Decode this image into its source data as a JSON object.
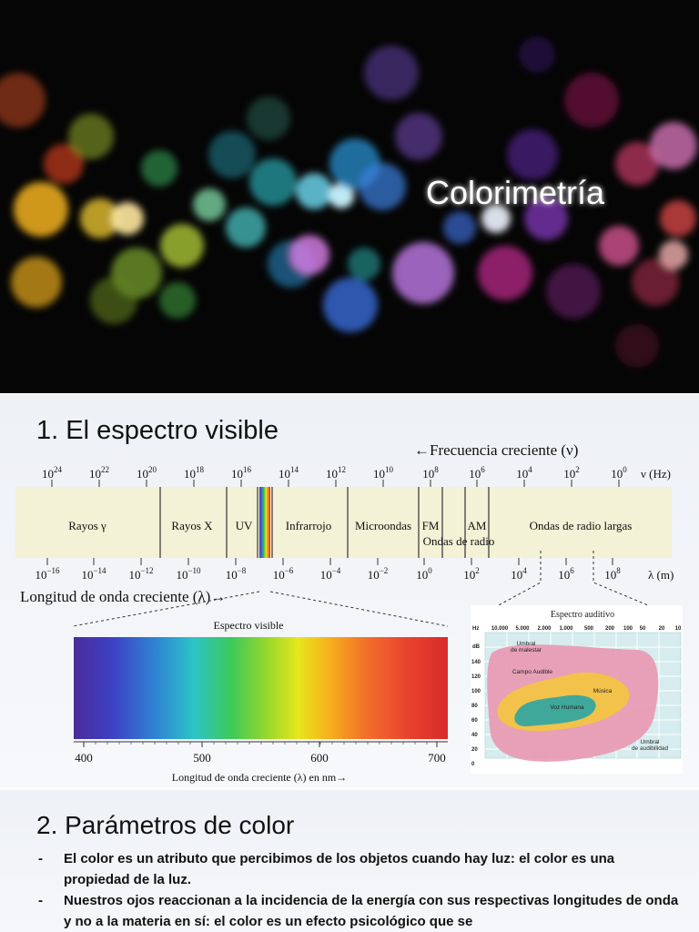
{
  "header": {
    "title": "Colorimetría"
  },
  "section1": {
    "title": "1. El espectro visible",
    "frequency_caption": "←Frecuencia creciente (ν)",
    "frequency_unit": "ν (Hz)",
    "frequency_ticks": [
      {
        "base": "10",
        "exp": "24"
      },
      {
        "base": "10",
        "exp": "22"
      },
      {
        "base": "10",
        "exp": "20"
      },
      {
        "base": "10",
        "exp": "18"
      },
      {
        "base": "10",
        "exp": "16"
      },
      {
        "base": "10",
        "exp": "14"
      },
      {
        "base": "10",
        "exp": "12"
      },
      {
        "base": "10",
        "exp": "10"
      },
      {
        "base": "10",
        "exp": "8"
      },
      {
        "base": "10",
        "exp": "6"
      },
      {
        "base": "10",
        "exp": "4"
      },
      {
        "base": "10",
        "exp": "2"
      },
      {
        "base": "10",
        "exp": "0"
      }
    ],
    "bands": [
      "Rayos γ",
      "Rayos X",
      "UV",
      "Infrarrojo",
      "Microondas",
      "FM",
      "AM",
      "Ondas de radio largas"
    ],
    "radio_label": "Ondas de radio",
    "wavelength_unit": "λ (m)",
    "wavelength_ticks": [
      {
        "base": "10",
        "exp": "−16"
      },
      {
        "base": "10",
        "exp": "−14"
      },
      {
        "base": "10",
        "exp": "−12"
      },
      {
        "base": "10",
        "exp": "−10"
      },
      {
        "base": "10",
        "exp": "−8"
      },
      {
        "base": "10",
        "exp": "−6"
      },
      {
        "base": "10",
        "exp": "−4"
      },
      {
        "base": "10",
        "exp": "−2"
      },
      {
        "base": "10",
        "exp": "0"
      },
      {
        "base": "10",
        "exp": "2"
      },
      {
        "base": "10",
        "exp": "4"
      },
      {
        "base": "10",
        "exp": "6"
      },
      {
        "base": "10",
        "exp": "8"
      }
    ],
    "wavelength_caption": "Longitud de onda creciente (λ)→",
    "visible": {
      "title": "Espectro visible",
      "ticks": [
        "400",
        "500",
        "600",
        "700"
      ],
      "caption": "Longitud de onda creciente (λ) en nm→"
    },
    "auditory": {
      "title": "Espectro auditivo",
      "hz_unit": "Hz",
      "hz_ticks": [
        "10.000",
        "5.000",
        "2.000",
        "1.000",
        "500",
        "200",
        "100",
        "50",
        "20",
        "10"
      ],
      "db_unit": "dB",
      "db_ticks": [
        "140",
        "120",
        "100",
        "80",
        "60",
        "40",
        "20",
        "0"
      ],
      "regions": {
        "discomfort": [
          "Umbral",
          "de malestar"
        ],
        "audible": [
          "Campo Audible"
        ],
        "music": [
          "Música"
        ],
        "voice": [
          "Voz Humana"
        ],
        "hearing": [
          "Umbral",
          "de audibilidad"
        ]
      }
    }
  },
  "section2": {
    "title": "2. Parámetros de color",
    "bullets": [
      {
        "marker": "-",
        "text": "El color es un atributo que percibimos de los objetos cuando hay luz: el color es una propiedad de la luz."
      },
      {
        "marker": "-",
        "text": "Nuestros ojos reaccionan a la incidencia de la energía con sus respectivas longitudes de onda y no a la materia en sí:  el color es un efecto psicológico que se"
      }
    ]
  }
}
